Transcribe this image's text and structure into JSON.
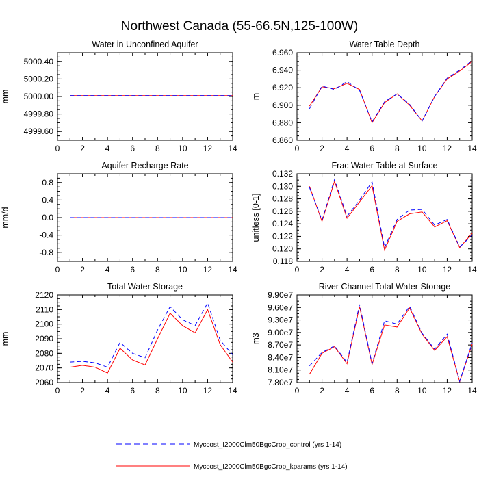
{
  "title": "Northwest Canada (55-66.5N,125-100W)",
  "colors": {
    "control": "#0000ff",
    "kparams": "#ff0000"
  },
  "legend": [
    {
      "label": "Myccost_I2000Clm50BgcCrop_control (yrs 1-14)",
      "style": "dashed",
      "color": "#0000ff"
    },
    {
      "label": "Myccost_I2000Clm50BgcCrop_kparams (yrs 1-14)",
      "style": "solid",
      "color": "#ff0000"
    }
  ],
  "chart_data": [
    {
      "type": "line",
      "title": "Water in Unconfined Aquifer",
      "ylabel": "mm",
      "xlim": [
        0,
        14
      ],
      "ylim": [
        4999.5,
        5000.5
      ],
      "xticks": [
        "0",
        "2",
        "4",
        "6",
        "8",
        "10",
        "12",
        "14"
      ],
      "yticks": [
        {
          "v": 4999.6,
          "l": "4999.60"
        },
        {
          "v": 4999.8,
          "l": "4999.80"
        },
        {
          "v": 5000.0,
          "l": "5000.00"
        },
        {
          "v": 5000.2,
          "l": "5000.20"
        },
        {
          "v": 5000.4,
          "l": "5000.40"
        }
      ],
      "x": [
        1,
        2,
        3,
        4,
        5,
        6,
        7,
        8,
        9,
        10,
        11,
        12,
        13,
        14
      ],
      "series": [
        {
          "style": "dashed",
          "color": "#0000ff",
          "values": [
            5000.01,
            5000.01,
            5000.01,
            5000.01,
            5000.01,
            5000.01,
            5000.01,
            5000.01,
            5000.01,
            5000.01,
            5000.01,
            5000.01,
            5000.01,
            5000.01
          ]
        },
        {
          "style": "solid",
          "color": "#ff0000",
          "values": [
            5000.01,
            5000.01,
            5000.01,
            5000.01,
            5000.01,
            5000.01,
            5000.01,
            5000.01,
            5000.01,
            5000.01,
            5000.01,
            5000.01,
            5000.01,
            5000.01
          ]
        }
      ]
    },
    {
      "type": "line",
      "title": "Water Table Depth",
      "ylabel": "m",
      "xlim": [
        0,
        14
      ],
      "ylim": [
        6.86,
        6.96
      ],
      "xticks": [
        "0",
        "2",
        "4",
        "6",
        "8",
        "10",
        "12",
        "14"
      ],
      "yticks": [
        {
          "v": 6.86,
          "l": "6.860"
        },
        {
          "v": 6.88,
          "l": "6.880"
        },
        {
          "v": 6.9,
          "l": "6.900"
        },
        {
          "v": 6.92,
          "l": "6.920"
        },
        {
          "v": 6.94,
          "l": "6.940"
        },
        {
          "v": 6.96,
          "l": "6.960"
        }
      ],
      "x": [
        1,
        2,
        3,
        4,
        5,
        6,
        7,
        8,
        9,
        10,
        11,
        12,
        13,
        14
      ],
      "series": [
        {
          "style": "dashed",
          "color": "#0000ff",
          "values": [
            6.896,
            6.922,
            6.918,
            6.927,
            6.917,
            6.881,
            6.904,
            6.913,
            6.901,
            6.882,
            6.91,
            6.931,
            6.94,
            6.951
          ]
        },
        {
          "style": "solid",
          "color": "#ff0000",
          "values": [
            6.899,
            6.921,
            6.919,
            6.925,
            6.918,
            6.88,
            6.903,
            6.913,
            6.9,
            6.882,
            6.91,
            6.93,
            6.939,
            6.95
          ]
        }
      ]
    },
    {
      "type": "line",
      "title": "Aquifer Recharge Rate",
      "ylabel": "mm/d",
      "xlim": [
        0,
        14
      ],
      "ylim": [
        -1.0,
        1.0
      ],
      "xticks": [
        "0",
        "2",
        "4",
        "6",
        "8",
        "10",
        "12",
        "14"
      ],
      "yticks": [
        {
          "v": -0.8,
          "l": "-0.8"
        },
        {
          "v": -0.4,
          "l": "-0.4"
        },
        {
          "v": 0.0,
          "l": "0.0"
        },
        {
          "v": 0.4,
          "l": "0.4"
        },
        {
          "v": 0.8,
          "l": "0.8"
        }
      ],
      "x": [
        1,
        2,
        3,
        4,
        5,
        6,
        7,
        8,
        9,
        10,
        11,
        12,
        13,
        14
      ],
      "series": [
        {
          "style": "dashed",
          "color": "#0000ff",
          "values": [
            0,
            0,
            0,
            0,
            0,
            0,
            0,
            0,
            0,
            0,
            0,
            0,
            0,
            0
          ]
        },
        {
          "style": "solid",
          "color": "#ff0000",
          "values": [
            0,
            0,
            0,
            0,
            0,
            0,
            0,
            0,
            0,
            0,
            0,
            0,
            0,
            0
          ]
        }
      ]
    },
    {
      "type": "line",
      "title": "Frac Water Table at Surface",
      "ylabel": "unitless [0-1]",
      "xlim": [
        0,
        14
      ],
      "ylim": [
        0.118,
        0.132
      ],
      "xticks": [
        "0",
        "2",
        "4",
        "6",
        "8",
        "10",
        "12",
        "14"
      ],
      "yticks": [
        {
          "v": 0.118,
          "l": "0.118"
        },
        {
          "v": 0.12,
          "l": "0.120"
        },
        {
          "v": 0.122,
          "l": "0.122"
        },
        {
          "v": 0.124,
          "l": "0.124"
        },
        {
          "v": 0.126,
          "l": "0.126"
        },
        {
          "v": 0.128,
          "l": "0.128"
        },
        {
          "v": 0.13,
          "l": "0.130"
        },
        {
          "v": 0.132,
          "l": "0.132"
        }
      ],
      "x": [
        1,
        2,
        3,
        4,
        5,
        6,
        7,
        8,
        9,
        10,
        11,
        12,
        13,
        14
      ],
      "series": [
        {
          "style": "dashed",
          "color": "#0000ff",
          "values": [
            0.1298,
            0.1246,
            0.1311,
            0.1252,
            0.1278,
            0.1307,
            0.1202,
            0.1247,
            0.1262,
            0.1263,
            0.1238,
            0.1247,
            0.1203,
            0.1222
          ]
        },
        {
          "style": "solid",
          "color": "#ff0000",
          "values": [
            0.13,
            0.1244,
            0.1308,
            0.1249,
            0.1275,
            0.1301,
            0.1198,
            0.1244,
            0.1256,
            0.1259,
            0.1235,
            0.1245,
            0.1202,
            0.1225
          ]
        }
      ]
    },
    {
      "type": "line",
      "title": "Total Water Storage",
      "ylabel": "mm",
      "xlim": [
        0,
        14
      ],
      "ylim": [
        2060,
        2120
      ],
      "xticks": [
        "0",
        "2",
        "4",
        "6",
        "8",
        "10",
        "12",
        "14"
      ],
      "yticks": [
        {
          "v": 2060,
          "l": "2060"
        },
        {
          "v": 2070,
          "l": "2070"
        },
        {
          "v": 2080,
          "l": "2080"
        },
        {
          "v": 2090,
          "l": "2090"
        },
        {
          "v": 2100,
          "l": "2100"
        },
        {
          "v": 2110,
          "l": "2110"
        },
        {
          "v": 2120,
          "l": "2120"
        }
      ],
      "x": [
        1,
        2,
        3,
        4,
        5,
        6,
        7,
        8,
        9,
        10,
        11,
        12,
        13,
        14
      ],
      "series": [
        {
          "style": "dashed",
          "color": "#0000ff",
          "values": [
            2074,
            2074.5,
            2073.5,
            2070.5,
            2087.5,
            2080,
            2077,
            2096,
            2112,
            2103,
            2099,
            2114.5,
            2089,
            2079
          ]
        },
        {
          "style": "solid",
          "color": "#ff0000",
          "values": [
            2070.5,
            2071.8,
            2070.5,
            2066.5,
            2083.5,
            2075.5,
            2072,
            2090,
            2107.5,
            2099,
            2094,
            2110,
            2086,
            2074
          ]
        }
      ]
    },
    {
      "type": "line",
      "title": "River Channel Total Water Storage",
      "ylabel": "m3",
      "xlim": [
        0,
        14
      ],
      "ylim": [
        78000000,
        99000000
      ],
      "xticks": [
        "0",
        "2",
        "4",
        "6",
        "8",
        "10",
        "12",
        "14"
      ],
      "yticks": [
        {
          "v": 78000000,
          "l": "7.80e7"
        },
        {
          "v": 81000000,
          "l": "8.10e7"
        },
        {
          "v": 84000000,
          "l": "8.40e7"
        },
        {
          "v": 87000000,
          "l": "8.70e7"
        },
        {
          "v": 90000000,
          "l": "9.00e7"
        },
        {
          "v": 93000000,
          "l": "9.30e7"
        },
        {
          "v": 96000000,
          "l": "9.60e7"
        },
        {
          "v": 99000000,
          "l": "9.90e7"
        }
      ],
      "x": [
        1,
        2,
        3,
        4,
        5,
        6,
        7,
        8,
        9,
        10,
        11,
        12,
        13,
        14
      ],
      "series": [
        {
          "style": "dashed",
          "color": "#0000ff",
          "values": [
            82000000,
            85200000,
            86800000,
            82800000,
            96700000,
            82500000,
            92800000,
            92000000,
            96300000,
            89800000,
            86000000,
            89600000,
            78300000,
            87500000
          ]
        },
        {
          "style": "solid",
          "color": "#ff0000",
          "values": [
            80000000,
            85000000,
            86600000,
            82500000,
            96200000,
            82300000,
            91800000,
            91300000,
            95900000,
            89600000,
            85700000,
            89000000,
            78200000,
            87200000
          ]
        }
      ]
    }
  ]
}
